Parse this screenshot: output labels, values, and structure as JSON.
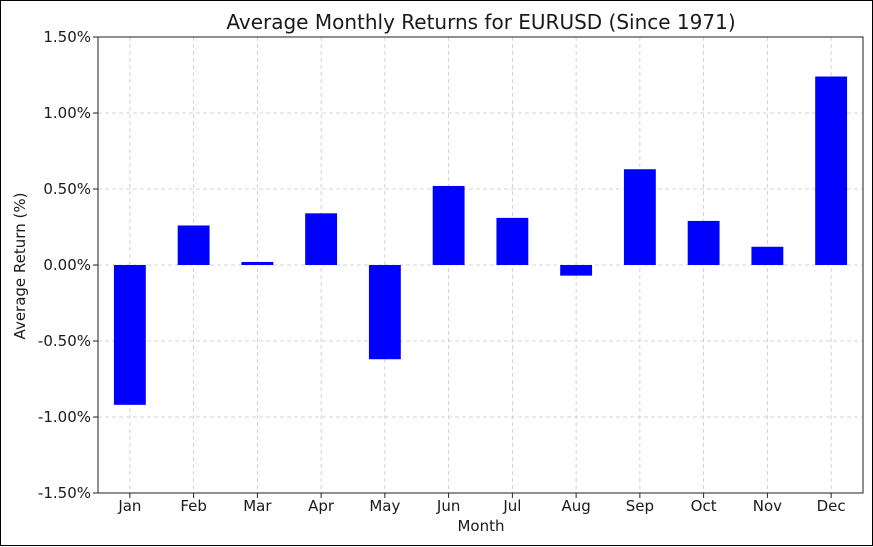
{
  "chart_data": {
    "type": "bar",
    "title": "Average Monthly Returns for EURUSD (Since 1971)",
    "xlabel": "Month",
    "ylabel": "Average Return (%)",
    "categories": [
      "Jan",
      "Feb",
      "Mar",
      "Apr",
      "May",
      "Jun",
      "Jul",
      "Aug",
      "Sep",
      "Oct",
      "Nov",
      "Dec"
    ],
    "values": [
      -0.92,
      0.26,
      0.02,
      0.34,
      -0.62,
      0.52,
      0.31,
      -0.07,
      0.63,
      0.29,
      0.12,
      1.24
    ],
    "ylim": [
      -1.5,
      1.5
    ],
    "yticks": [
      1.5,
      1.0,
      0.5,
      0.0,
      -0.5,
      -1.0,
      -1.5
    ],
    "ytick_labels": [
      "1.50%",
      "1.00%",
      "0.50%",
      "0.00%",
      "-0.50%",
      "-1.00%",
      "-1.50%"
    ],
    "grid": true,
    "bar_color": "#0000ff"
  }
}
